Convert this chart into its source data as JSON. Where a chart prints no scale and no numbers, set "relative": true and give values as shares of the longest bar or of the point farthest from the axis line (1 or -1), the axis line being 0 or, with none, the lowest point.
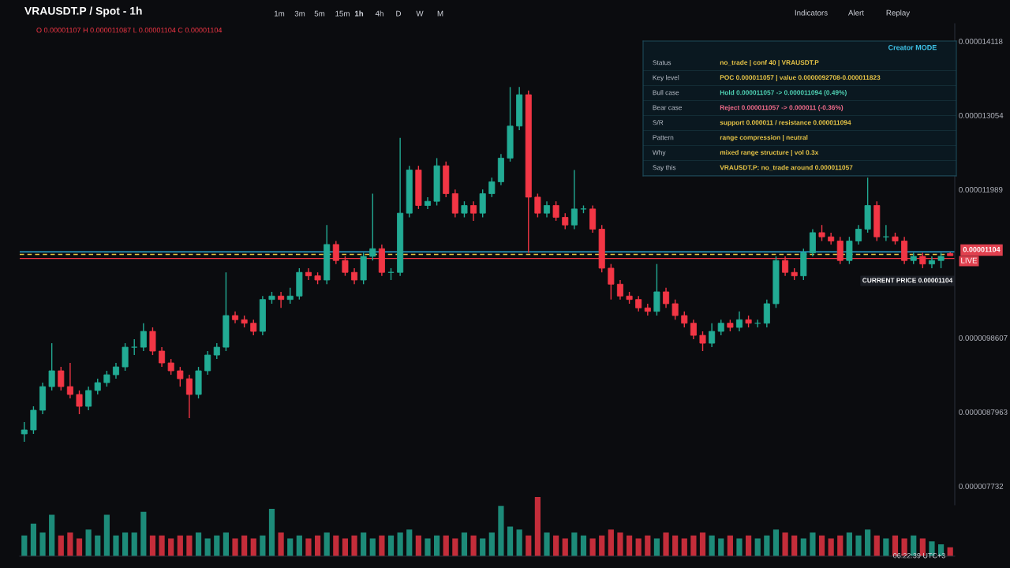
{
  "chart_data": [
    {
      "type": "candlestick",
      "title": "VRAUSDT.P / Spot - 1h",
      "subtitle": "O 0.00001107 H 0.000011087 L 0.00001104 C 0.00001104",
      "categories": [
        null,
        null,
        null,
        null,
        null,
        null,
        null,
        null,
        null,
        null,
        null,
        null,
        null,
        null,
        null,
        null,
        null,
        null,
        null,
        null,
        null,
        null,
        null,
        null,
        null,
        null,
        null,
        null,
        null,
        null,
        null,
        null,
        null,
        null,
        null,
        null,
        null,
        null,
        null,
        null,
        null,
        null,
        null,
        null,
        null,
        null,
        null,
        null,
        null,
        null,
        null,
        null,
        null,
        null,
        null,
        null,
        null,
        null,
        null,
        null,
        null,
        null,
        null,
        null,
        null,
        null,
        null,
        null,
        null,
        null,
        null,
        null,
        null,
        null,
        null,
        null,
        null,
        null,
        null,
        null,
        null,
        null,
        null,
        null,
        null,
        null,
        null,
        null,
        null,
        null,
        null,
        null,
        null,
        null,
        null,
        null,
        null,
        null,
        null,
        null,
        null,
        null
      ],
      "colors": [
        "#22ab94",
        "#22ab94",
        "#22ab94",
        "#22ab94",
        "#f23645",
        "#f23645",
        "#f23645",
        "#22ab94",
        "#22ab94",
        "#22ab94",
        "#22ab94",
        "#22ab94",
        "#22ab94",
        "#22ab94",
        "#f23645",
        "#f23645",
        "#f23645",
        "#f23645",
        "#f23645",
        "#22ab94",
        "#22ab94",
        "#22ab94",
        "#22ab94",
        "#f23645",
        "#f23645",
        "#f23645",
        "#22ab94",
        "#22ab94",
        "#f23645",
        "#22ab94",
        "#22ab94",
        "#f23645",
        "#f23645",
        "#22ab94",
        "#f23645",
        "#f23645",
        "#f23645",
        "#22ab94",
        "#22ab94",
        "#f23645",
        "#22ab94",
        "#22ab94",
        "#22ab94",
        "#f23645",
        "#22ab94",
        "#22ab94",
        "#f23645",
        "#f23645",
        "#22ab94",
        "#f23645",
        "#22ab94",
        "#22ab94",
        "#22ab94",
        "#22ab94",
        "#22ab94",
        "#f23645",
        "#f23645",
        "#22ab94",
        "#f23645",
        "#f23645",
        "#22ab94",
        "#22ab94",
        "#f23645",
        "#f23645",
        "#f23645",
        "#f23645",
        "#f23645",
        "#f23645",
        "#f23645",
        "#22ab94",
        "#f23645",
        "#f23645",
        "#f23645",
        "#f23645",
        "#f23645",
        "#22ab94",
        "#22ab94",
        "#f23645",
        "#22ab94",
        "#f23645",
        "#22ab94",
        "#22ab94",
        "#22ab94",
        "#f23645",
        "#f23645",
        "#22ab94",
        "#22ab94",
        "#f23645",
        "#f23645",
        "#f23645",
        "#22ab94",
        "#22ab94",
        "#22ab94",
        "#f23645",
        "#22ab94",
        "#f23645",
        "#f23645",
        "#22ab94",
        "#f23645",
        "#22ab94",
        "#22ab94",
        "#f23645"
      ],
      "ohlc": [
        [
          8.481e-06,
          8.651e-06,
          8.368e-06,
          8.538e-06
        ],
        [
          8.538e-06,
          8.877e-06,
          8.481e-06,
          8.821e-06
        ],
        [
          8.821e-06,
          9.217e-06,
          8.764e-06,
          9.16e-06
        ],
        [
          9.16e-06,
          9.783e-06,
          9.104e-06,
          9.387e-06
        ],
        [
          9.387e-06,
          9.443e-06,
          9.104e-06,
          9.16e-06
        ],
        [
          9.16e-06,
          9.5e-06,
          8.99e-06,
          9.047e-06
        ],
        [
          9.047e-06,
          9.104e-06,
          8.764e-06,
          8.877e-06
        ],
        [
          8.877e-06,
          9.16e-06,
          8.821e-06,
          9.104e-06
        ],
        [
          9.104e-06,
          9.273e-06,
          9.047e-06,
          9.217e-06
        ],
        [
          9.217e-06,
          9.387e-06,
          9.16e-06,
          9.33e-06
        ],
        [
          9.33e-06,
          9.5e-06,
          9.273e-06,
          9.443e-06
        ],
        [
          9.443e-06,
          9.783e-06,
          9.387e-06,
          9.726e-06
        ],
        [
          9.726e-06,
          9.839e-06,
          9.613e-06,
          9.726e-06
        ],
        [
          9.726e-06,
          1.007e-05,
          9.67e-06,
          9.953e-06
        ],
        [
          9.953e-06,
          1.001e-05,
          9.613e-06,
          9.67e-06
        ],
        [
          9.67e-06,
          9.726e-06,
          9.443e-06,
          9.5e-06
        ],
        [
          9.5e-06,
          9.556e-06,
          9.33e-06,
          9.387e-06
        ],
        [
          9.387e-06,
          9.443e-06,
          9.16e-06,
          9.273e-06
        ],
        [
          9.273e-06,
          9.33e-06,
          8.707e-06,
          9.047e-06
        ],
        [
          9.047e-06,
          9.443e-06,
          8.99e-06,
          9.387e-06
        ],
        [
          9.387e-06,
          9.67e-06,
          9.33e-06,
          9.613e-06
        ],
        [
          9.613e-06,
          9.783e-06,
          9.556e-06,
          9.726e-06
        ],
        [
          9.726e-06,
          1.08e-05,
          9.67e-06,
          1.018e-05
        ],
        [
          1.018e-05,
          1.024e-05,
          1.007e-05,
          1.012e-05
        ],
        [
          1.012e-05,
          1.018e-05,
          1.001e-05,
          1.007e-05
        ],
        [
          1.007e-05,
          1.012e-05,
          9.896e-06,
          9.953e-06
        ],
        [
          9.953e-06,
          1.046e-05,
          9.896e-06,
          1.041e-05
        ],
        [
          1.041e-05,
          1.052e-05,
          1.035e-05,
          1.046e-05
        ],
        [
          1.046e-05,
          1.052e-05,
          1.029e-05,
          1.041e-05
        ],
        [
          1.041e-05,
          1.058e-05,
          1.035e-05,
          1.046e-05
        ],
        [
          1.046e-05,
          1.086e-05,
          1.041e-05,
          1.08e-05
        ],
        [
          1.08e-05,
          1.086e-05,
          1.069e-05,
          1.075e-05
        ],
        [
          1.075e-05,
          1.08e-05,
          1.063e-05,
          1.069e-05
        ],
        [
          1.069e-05,
          1.148e-05,
          1.063e-05,
          1.12e-05
        ],
        [
          1.12e-05,
          1.125e-05,
          1.092e-05,
          1.097e-05
        ],
        [
          1.097e-05,
          1.103e-05,
          1.075e-05,
          1.08e-05
        ],
        [
          1.08e-05,
          1.086e-05,
          1.063e-05,
          1.069e-05
        ],
        [
          1.069e-05,
          1.108e-05,
          1.063e-05,
          1.103e-05
        ],
        [
          1.103e-05,
          1.193e-05,
          1.097e-05,
          1.114e-05
        ],
        [
          1.114e-05,
          1.12e-05,
          1.075e-05,
          1.08e-05
        ],
        [
          1.08e-05,
          1.086e-05,
          1.069e-05,
          1.08e-05
        ],
        [
          1.08e-05,
          1.273e-05,
          1.075e-05,
          1.165e-05
        ],
        [
          1.165e-05,
          1.233e-05,
          1.159e-05,
          1.227e-05
        ],
        [
          1.227e-05,
          1.233e-05,
          1.171e-05,
          1.176e-05
        ],
        [
          1.176e-05,
          1.188e-05,
          1.171e-05,
          1.182e-05
        ],
        [
          1.182e-05,
          1.244e-05,
          1.176e-05,
          1.233e-05
        ],
        [
          1.233e-05,
          1.239e-05,
          1.188e-05,
          1.193e-05
        ],
        [
          1.193e-05,
          1.199e-05,
          1.159e-05,
          1.165e-05
        ],
        [
          1.165e-05,
          1.182e-05,
          1.159e-05,
          1.176e-05
        ],
        [
          1.176e-05,
          1.182e-05,
          1.154e-05,
          1.165e-05
        ],
        [
          1.165e-05,
          1.199e-05,
          1.159e-05,
          1.193e-05
        ],
        [
          1.193e-05,
          1.216e-05,
          1.188e-05,
          1.21e-05
        ],
        [
          1.21e-05,
          1.25e-05,
          1.205e-05,
          1.244e-05
        ],
        [
          1.244e-05,
          1.346e-05,
          1.239e-05,
          1.29e-05
        ],
        [
          1.29e-05,
          1.346e-05,
          1.284e-05,
          1.335e-05
        ],
        [
          1.335e-05,
          1.341e-05,
          1.108e-05,
          1.188e-05
        ],
        [
          1.188e-05,
          1.193e-05,
          1.159e-05,
          1.165e-05
        ],
        [
          1.165e-05,
          1.182e-05,
          1.159e-05,
          1.176e-05
        ],
        [
          1.176e-05,
          1.182e-05,
          1.154e-05,
          1.159e-05
        ],
        [
          1.159e-05,
          1.165e-05,
          1.142e-05,
          1.148e-05
        ],
        [
          1.148e-05,
          1.227e-05,
          1.142e-05,
          1.171e-05
        ],
        [
          1.171e-05,
          1.176e-05,
          1.165e-05,
          1.171e-05
        ],
        [
          1.171e-05,
          1.176e-05,
          1.137e-05,
          1.142e-05
        ],
        [
          1.142e-05,
          1.148e-05,
          1.08e-05,
          1.086e-05
        ],
        [
          1.086e-05,
          1.092e-05,
          1.041e-05,
          1.063e-05
        ],
        [
          1.063e-05,
          1.069e-05,
          1.041e-05,
          1.046e-05
        ],
        [
          1.046e-05,
          1.052e-05,
          1.035e-05,
          1.041e-05
        ],
        [
          1.041e-05,
          1.046e-05,
          1.024e-05,
          1.029e-05
        ],
        [
          1.029e-05,
          1.035e-05,
          1.018e-05,
          1.024e-05
        ],
        [
          1.024e-05,
          1.092e-05,
          1.018e-05,
          1.052e-05
        ],
        [
          1.052e-05,
          1.058e-05,
          1.029e-05,
          1.035e-05
        ],
        [
          1.035e-05,
          1.041e-05,
          1.012e-05,
          1.018e-05
        ],
        [
          1.018e-05,
          1.024e-05,
          1.001e-05,
          1.007e-05
        ],
        [
          1.007e-05,
          1.012e-05,
          9.839e-06,
          9.896e-06
        ],
        [
          9.896e-06,
          9.953e-06,
          9.67e-06,
          9.783e-06
        ],
        [
          9.783e-06,
          1.007e-05,
          9.726e-06,
          9.953e-06
        ],
        [
          9.953e-06,
          1.012e-05,
          9.896e-06,
          1.007e-05
        ],
        [
          1.007e-05,
          1.012e-05,
          9.953e-06,
          1.001e-05
        ],
        [
          1.001e-05,
          1.024e-05,
          9.953e-06,
          1.012e-05
        ],
        [
          1.012e-05,
          1.018e-05,
          1.001e-05,
          1.007e-05
        ],
        [
          1.007e-05,
          1.012e-05,
          1.001e-05,
          1.007e-05
        ],
        [
          1.007e-05,
          1.041e-05,
          1.001e-05,
          1.035e-05
        ],
        [
          1.035e-05,
          1.103e-05,
          1.029e-05,
          1.097e-05
        ],
        [
          1.097e-05,
          1.103e-05,
          1.075e-05,
          1.08e-05
        ],
        [
          1.08e-05,
          1.086e-05,
          1.069e-05,
          1.075e-05
        ],
        [
          1.075e-05,
          1.114e-05,
          1.069e-05,
          1.108e-05
        ],
        [
          1.108e-05,
          1.142e-05,
          1.103e-05,
          1.137e-05
        ],
        [
          1.137e-05,
          1.148e-05,
          1.125e-05,
          1.131e-05
        ],
        [
          1.131e-05,
          1.137e-05,
          1.12e-05,
          1.125e-05
        ],
        [
          1.125e-05,
          1.131e-05,
          1.092e-05,
          1.097e-05
        ],
        [
          1.097e-05,
          1.131e-05,
          1.092e-05,
          1.125e-05
        ],
        [
          1.125e-05,
          1.148e-05,
          1.12e-05,
          1.142e-05
        ],
        [
          1.142e-05,
          1.216e-05,
          1.137e-05,
          1.176e-05
        ],
        [
          1.176e-05,
          1.182e-05,
          1.125e-05,
          1.131e-05
        ],
        [
          1.131e-05,
          1.148e-05,
          1.125e-05,
          1.131e-05
        ],
        [
          1.131e-05,
          1.137e-05,
          1.12e-05,
          1.125e-05
        ],
        [
          1.125e-05,
          1.131e-05,
          1.092e-05,
          1.097e-05
        ],
        [
          1.097e-05,
          1.108e-05,
          1.092e-05,
          1.103e-05
        ],
        [
          1.103e-05,
          1.108e-05,
          1.086e-05,
          1.092e-05
        ],
        [
          1.092e-05,
          1.103e-05,
          1.086e-05,
          1.097e-05
        ],
        [
          1.097e-05,
          1.108e-05,
          1.086e-05,
          1.103e-05
        ],
        [
          1.107e-05,
          1.109e-05,
          1.104e-05,
          1.104e-05
        ]
      ],
      "ylim": [
        7.462e-06,
        1.437e-05
      ],
      "yticks": [
        {
          "value": 1.4118e-05,
          "label": "0.000014118"
        },
        {
          "value": 1.3054e-05,
          "label": "0.000013054"
        },
        {
          "value": 1.1989e-05,
          "label": "0.000011989"
        },
        {
          "value": 9.8607e-06,
          "label": "0.0000098607"
        },
        {
          "value": 8.7963e-06,
          "label": "0.0000087963"
        },
        {
          "value": 7.732e-06,
          "label": "0.000007732"
        }
      ],
      "tick_labels": "y",
      "grid": false,
      "legend": false,
      "ref_lines": [
        {
          "axis": "y",
          "value": 1.1094e-05,
          "color": "#2aa8d8",
          "line_style": "solid"
        },
        {
          "axis": "y",
          "value": 1.1057e-05,
          "color": "#e8c547",
          "line_style": "dashed"
        },
        {
          "axis": "y",
          "value": 1.1e-05,
          "color": "#f23645",
          "line_style": "solid"
        }
      ],
      "annotations": [
        "1m",
        "3m",
        "5m",
        "15m",
        "1h",
        "4h",
        "D",
        "W",
        "M",
        "Indicators",
        "Alert",
        "Replay",
        "Creator MODE",
        "Status",
        "no_trade | conf 40 | VRAUSDT.P",
        "Key level",
        "POC 0.000011057 | value 0.0000092708-0.000011823",
        "Bull case",
        "Hold 0.000011057 -> 0.000011094 (0.49%)",
        "Bear case",
        "Reject 0.000011057 -> 0.000011 (-0.36%)",
        "S/R",
        "support 0.000011 / resistance 0.000011094",
        "Pattern",
        "range compression | neutral",
        "Why",
        "mixed range structure | vol 0.3x",
        "Say this",
        "VRAUSDT.P: no_trade around 0.000011057",
        "CURRENT PRICE 0.00001104",
        "0.00001104",
        "LIVE",
        "06:22:39 UTC+3"
      ]
    },
    {
      "type": "bar",
      "relative": true,
      "tick_labels": false,
      "grid": false,
      "colors": [
        "#22ab94",
        "#22ab94",
        "#22ab94",
        "#22ab94",
        "#f23645",
        "#f23645",
        "#f23645",
        "#22ab94",
        "#22ab94",
        "#22ab94",
        "#22ab94",
        "#22ab94",
        "#22ab94",
        "#22ab94",
        "#f23645",
        "#f23645",
        "#f23645",
        "#f23645",
        "#f23645",
        "#22ab94",
        "#22ab94",
        "#22ab94",
        "#22ab94",
        "#f23645",
        "#f23645",
        "#f23645",
        "#22ab94",
        "#22ab94",
        "#f23645",
        "#22ab94",
        "#22ab94",
        "#f23645",
        "#f23645",
        "#22ab94",
        "#f23645",
        "#f23645",
        "#f23645",
        "#22ab94",
        "#22ab94",
        "#f23645",
        "#22ab94",
        "#22ab94",
        "#22ab94",
        "#f23645",
        "#22ab94",
        "#22ab94",
        "#f23645",
        "#f23645",
        "#22ab94",
        "#f23645",
        "#22ab94",
        "#22ab94",
        "#22ab94",
        "#22ab94",
        "#22ab94",
        "#f23645",
        "#f23645",
        "#22ab94",
        "#f23645",
        "#f23645",
        "#22ab94",
        "#22ab94",
        "#f23645",
        "#f23645",
        "#f23645",
        "#f23645",
        "#f23645",
        "#f23645",
        "#f23645",
        "#22ab94",
        "#f23645",
        "#f23645",
        "#f23645",
        "#f23645",
        "#f23645",
        "#22ab94",
        "#22ab94",
        "#f23645",
        "#22ab94",
        "#f23645",
        "#22ab94",
        "#22ab94",
        "#22ab94",
        "#f23645",
        "#f23645",
        "#22ab94",
        "#22ab94",
        "#f23645",
        "#f23645",
        "#f23645",
        "#22ab94",
        "#22ab94",
        "#22ab94",
        "#f23645",
        "#22ab94",
        "#f23645",
        "#f23645",
        "#22ab94",
        "#f23645",
        "#22ab94",
        "#22ab94",
        "#f23645"
      ],
      "categories": [
        null,
        null,
        null,
        null,
        null,
        null,
        null,
        null,
        null,
        null,
        null,
        null,
        null,
        null,
        null,
        null,
        null,
        null,
        null,
        null,
        null,
        null,
        null,
        null,
        null,
        null,
        null,
        null,
        null,
        null,
        null,
        null,
        null,
        null,
        null,
        null,
        null,
        null,
        null,
        null,
        null,
        null,
        null,
        null,
        null,
        null,
        null,
        null,
        null,
        null,
        null,
        null,
        null,
        null,
        null,
        null,
        null,
        null,
        null,
        null,
        null,
        null,
        null,
        null,
        null,
        null,
        null,
        null,
        null,
        null,
        null,
        null,
        null,
        null,
        null,
        null,
        null,
        null,
        null,
        null,
        null,
        null,
        null,
        null,
        null,
        null,
        null,
        null,
        null,
        null,
        null,
        null,
        null,
        null,
        null,
        null,
        null,
        null,
        null,
        null,
        null,
        null
      ],
      "values": [
        0.35,
        0.55,
        0.4,
        0.7,
        0.35,
        0.4,
        0.3,
        0.45,
        0.35,
        0.7,
        0.35,
        0.4,
        0.4,
        0.75,
        0.35,
        0.35,
        0.3,
        0.35,
        0.35,
        0.4,
        0.3,
        0.35,
        0.4,
        0.3,
        0.35,
        0.3,
        0.35,
        0.8,
        0.4,
        0.3,
        0.35,
        0.3,
        0.35,
        0.4,
        0.35,
        0.3,
        0.35,
        0.4,
        0.3,
        0.35,
        0.35,
        0.4,
        0.45,
        0.35,
        0.3,
        0.35,
        0.35,
        0.3,
        0.4,
        0.35,
        0.3,
        0.4,
        0.85,
        0.5,
        0.45,
        0.35,
        1.0,
        0.4,
        0.35,
        0.3,
        0.4,
        0.35,
        0.3,
        0.35,
        0.45,
        0.4,
        0.35,
        0.3,
        0.35,
        0.3,
        0.4,
        0.35,
        0.3,
        0.35,
        0.4,
        0.35,
        0.3,
        0.35,
        0.3,
        0.35,
        0.3,
        0.35,
        0.45,
        0.4,
        0.35,
        0.3,
        0.4,
        0.35,
        0.3,
        0.35,
        0.4,
        0.35,
        0.45,
        0.35,
        0.3,
        0.35,
        0.3,
        0.35,
        0.3,
        0.25,
        0.2,
        0.15
      ]
    }
  ]
}
